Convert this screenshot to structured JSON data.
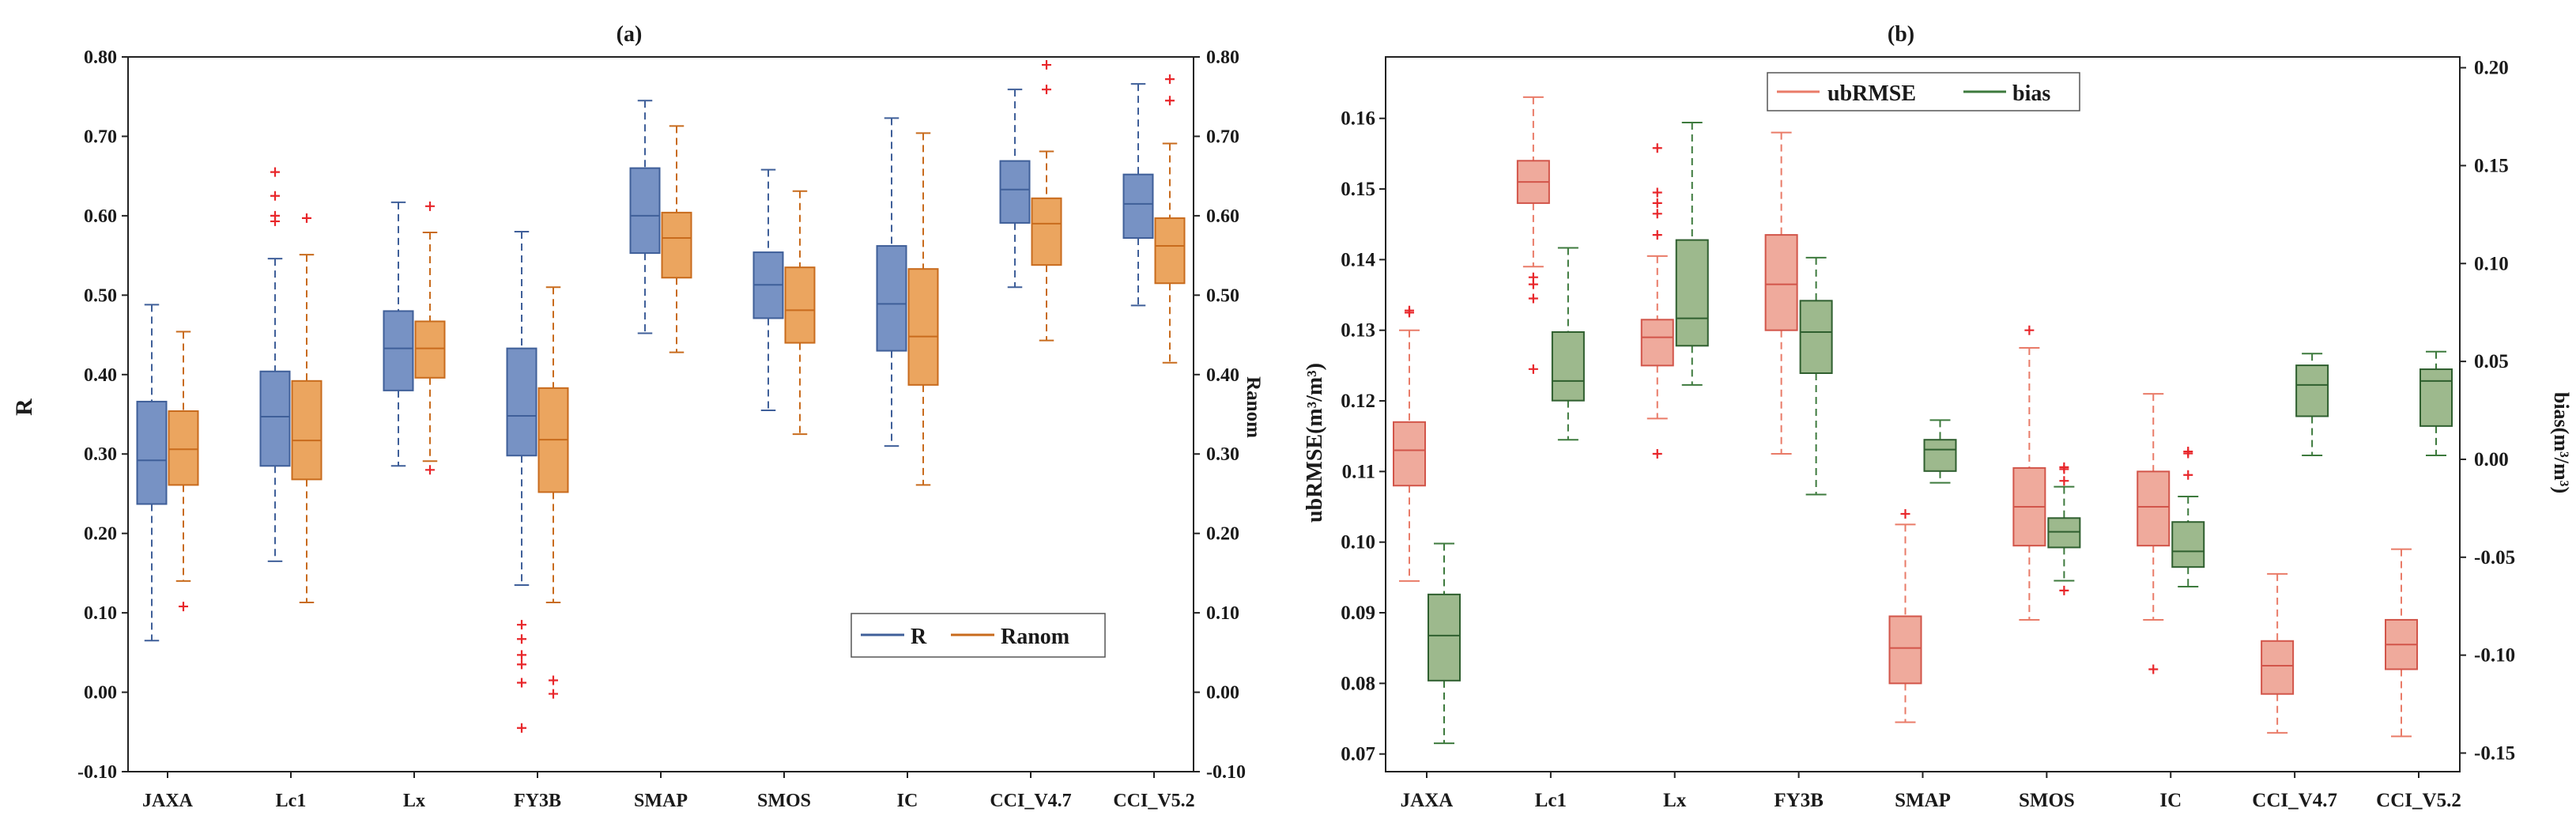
{
  "chart_data": [
    {
      "type": "box",
      "title": "(a)",
      "ylabel": "R",
      "ylabel_right": "Ranom",
      "ylim": [
        -0.1,
        0.8
      ],
      "yticks": [
        "-0.10",
        "0.00",
        "0.10",
        "0.20",
        "0.30",
        "0.40",
        "0.50",
        "0.60",
        "0.70",
        "0.80"
      ],
      "yticks_right": [
        "-0.10",
        "0.00",
        "0.10",
        "0.20",
        "0.30",
        "0.40",
        "0.50",
        "0.60",
        "0.70",
        "0.80"
      ],
      "legend_position": "bottom-right",
      "categories": [
        "JAXA",
        "Lc1",
        "Lx",
        "FY3B",
        "SMAP",
        "SMOS",
        "IC",
        "CCI_V4.7",
        "CCI_V5.2"
      ],
      "series": [
        {
          "name": "R",
          "axis": "left",
          "face": "#7792c4",
          "line": "#3f5f99",
          "boxes": [
            {
              "wl": 0.065,
              "q1": 0.237,
              "med": 0.292,
              "q3": 0.366,
              "wh": 0.488,
              "outliers": []
            },
            {
              "wl": 0.165,
              "q1": 0.285,
              "med": 0.347,
              "q3": 0.404,
              "wh": 0.546,
              "outliers": [
                0.593,
                0.6,
                0.625,
                0.655
              ]
            },
            {
              "wl": 0.285,
              "q1": 0.38,
              "med": 0.433,
              "q3": 0.48,
              "wh": 0.617,
              "outliers": []
            },
            {
              "wl": 0.135,
              "q1": 0.298,
              "med": 0.348,
              "q3": 0.433,
              "wh": 0.58,
              "outliers": [
                -0.045,
                0.012,
                0.035,
                0.047,
                0.067,
                0.085
              ]
            },
            {
              "wl": 0.452,
              "q1": 0.553,
              "med": 0.6,
              "q3": 0.66,
              "wh": 0.745,
              "outliers": []
            },
            {
              "wl": 0.355,
              "q1": 0.471,
              "med": 0.513,
              "q3": 0.554,
              "wh": 0.658,
              "outliers": []
            },
            {
              "wl": 0.31,
              "q1": 0.43,
              "med": 0.489,
              "q3": 0.562,
              "wh": 0.723,
              "outliers": []
            },
            {
              "wl": 0.51,
              "q1": 0.591,
              "med": 0.633,
              "q3": 0.669,
              "wh": 0.759,
              "outliers": []
            },
            {
              "wl": 0.487,
              "q1": 0.572,
              "med": 0.615,
              "q3": 0.652,
              "wh": 0.766,
              "outliers": []
            }
          ]
        },
        {
          "name": "Ranom",
          "axis": "right",
          "face": "#eba55f",
          "line": "#c86b1d",
          "boxes": [
            {
              "wl": 0.14,
              "q1": 0.261,
              "med": 0.306,
              "q3": 0.354,
              "wh": 0.454,
              "outliers": [
                0.108
              ]
            },
            {
              "wl": 0.113,
              "q1": 0.268,
              "med": 0.317,
              "q3": 0.392,
              "wh": 0.551,
              "outliers": [
                0.597
              ]
            },
            {
              "wl": 0.291,
              "q1": 0.396,
              "med": 0.433,
              "q3": 0.467,
              "wh": 0.579,
              "outliers": [
                0.28,
                0.612
              ]
            },
            {
              "wl": 0.113,
              "q1": 0.252,
              "med": 0.318,
              "q3": 0.383,
              "wh": 0.51,
              "outliers": [
                -0.002,
                0.015
              ]
            },
            {
              "wl": 0.428,
              "q1": 0.522,
              "med": 0.572,
              "q3": 0.604,
              "wh": 0.713,
              "outliers": []
            },
            {
              "wl": 0.325,
              "q1": 0.44,
              "med": 0.481,
              "q3": 0.535,
              "wh": 0.631,
              "outliers": []
            },
            {
              "wl": 0.261,
              "q1": 0.387,
              "med": 0.448,
              "q3": 0.533,
              "wh": 0.704,
              "outliers": []
            },
            {
              "wl": 0.443,
              "q1": 0.538,
              "med": 0.59,
              "q3": 0.622,
              "wh": 0.681,
              "outliers": [
                0.759,
                0.79
              ]
            },
            {
              "wl": 0.415,
              "q1": 0.515,
              "med": 0.562,
              "q3": 0.597,
              "wh": 0.691,
              "outliers": [
                0.745,
                0.772
              ]
            }
          ]
        }
      ]
    },
    {
      "type": "box",
      "title": "(b)",
      "ylabel": "ubRMSE(m³/m³)",
      "ylabel_right": "bias(m³/m³)",
      "ylim": [
        0.0675,
        0.1687
      ],
      "ylim_right": [
        -0.1595,
        0.2055
      ],
      "yticks": [
        "0.07",
        "0.08",
        "0.09",
        "0.10",
        "0.11",
        "0.12",
        "0.13",
        "0.14",
        "0.15",
        "0.16"
      ],
      "yticks_right": [
        "-0.15",
        "-0.10",
        "-0.05",
        "0.00",
        "0.05",
        "0.10",
        "0.15",
        "0.20"
      ],
      "legend_position": "top-left",
      "categories": [
        "JAXA",
        "Lc1",
        "Lx",
        "FY3B",
        "SMAP",
        "SMOS",
        "IC",
        "CCI_V4.7",
        "CCI_V5.2"
      ],
      "series": [
        {
          "name": "ubRMSE",
          "axis": "left",
          "face": "#efaa9c",
          "line": "#d2554a",
          "whisker": "#e97b68",
          "boxes": [
            {
              "wl": 0.0945,
              "q1": 0.108,
              "med": 0.113,
              "q3": 0.117,
              "wh": 0.13,
              "outliers": [
                0.1325,
                0.1328
              ]
            },
            {
              "wl": 0.139,
              "q1": 0.148,
              "med": 0.151,
              "q3": 0.154,
              "wh": 0.163,
              "outliers": [
                0.1245,
                0.1345,
                0.1365,
                0.1375
              ]
            },
            {
              "wl": 0.1175,
              "q1": 0.125,
              "med": 0.129,
              "q3": 0.1315,
              "wh": 0.1405,
              "outliers": [
                0.1125,
                0.1435,
                0.1465,
                0.148,
                0.1495,
                0.1558
              ]
            },
            {
              "wl": 0.1125,
              "q1": 0.13,
              "med": 0.1365,
              "q3": 0.1435,
              "wh": 0.158,
              "outliers": []
            },
            {
              "wl": 0.0745,
              "q1": 0.08,
              "med": 0.085,
              "q3": 0.0895,
              "wh": 0.1025,
              "outliers": [
                0.104
              ]
            },
            {
              "wl": 0.089,
              "q1": 0.0995,
              "med": 0.105,
              "q3": 0.1105,
              "wh": 0.1275,
              "outliers": [
                0.13
              ]
            },
            {
              "wl": 0.089,
              "q1": 0.0995,
              "med": 0.105,
              "q3": 0.11,
              "wh": 0.121,
              "outliers": [
                0.082
              ]
            },
            {
              "wl": 0.073,
              "q1": 0.0785,
              "med": 0.0825,
              "q3": 0.086,
              "wh": 0.0955,
              "outliers": []
            },
            {
              "wl": 0.0725,
              "q1": 0.082,
              "med": 0.0855,
              "q3": 0.089,
              "wh": 0.099,
              "outliers": []
            }
          ]
        },
        {
          "name": "bias",
          "axis": "right",
          "face": "#9db98d",
          "line": "#2f5f2f",
          "whisker": "#3d7a3d",
          "boxes": [
            {
              "wl": -0.145,
              "q1": -0.113,
              "med": -0.09,
              "q3": -0.069,
              "wh": -0.043,
              "outliers": []
            },
            {
              "wl": 0.01,
              "q1": 0.03,
              "med": 0.04,
              "q3": 0.065,
              "wh": 0.108,
              "outliers": []
            },
            {
              "wl": 0.038,
              "q1": 0.058,
              "med": 0.072,
              "q3": 0.112,
              "wh": 0.172,
              "outliers": []
            },
            {
              "wl": -0.018,
              "q1": 0.044,
              "med": 0.065,
              "q3": 0.081,
              "wh": 0.103,
              "outliers": []
            },
            {
              "wl": -0.012,
              "q1": -0.006,
              "med": 0.005,
              "q3": 0.01,
              "wh": 0.02,
              "outliers": []
            },
            {
              "wl": -0.062,
              "q1": -0.045,
              "med": -0.037,
              "q3": -0.03,
              "wh": -0.014,
              "outliers": [
                -0.067,
                -0.011,
                -0.005,
                -0.004
              ]
            },
            {
              "wl": -0.065,
              "q1": -0.055,
              "med": -0.047,
              "q3": -0.032,
              "wh": -0.019,
              "outliers": [
                -0.008,
                0.003,
                0.004
              ]
            },
            {
              "wl": 0.002,
              "q1": 0.022,
              "med": 0.038,
              "q3": 0.048,
              "wh": 0.054,
              "outliers": []
            },
            {
              "wl": 0.002,
              "q1": 0.017,
              "med": 0.04,
              "q3": 0.046,
              "wh": 0.055,
              "outliers": []
            }
          ]
        }
      ]
    }
  ]
}
